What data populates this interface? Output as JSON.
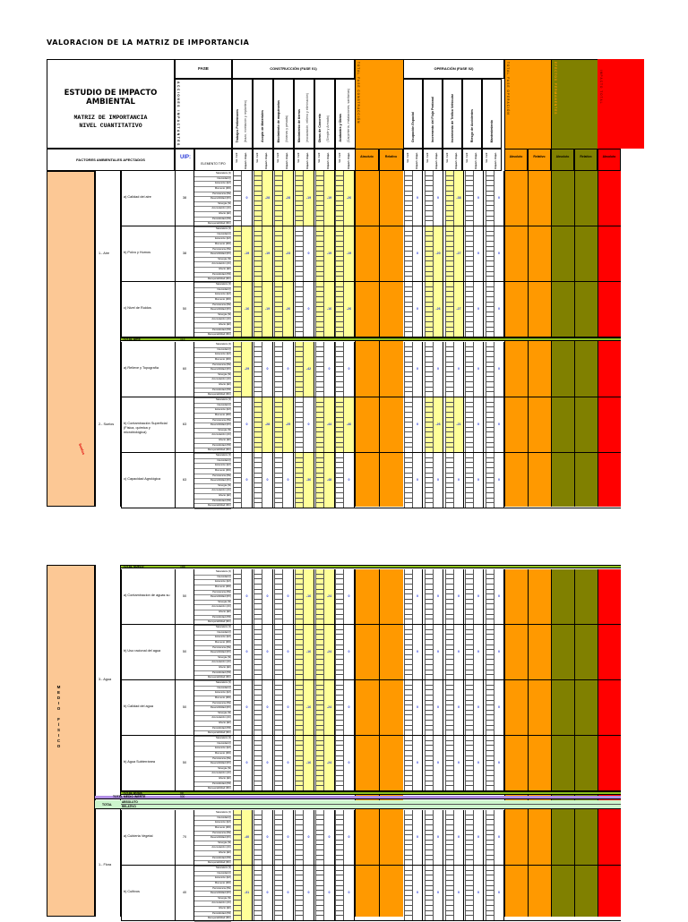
{
  "title": "VALORACION DE LA MATRIZ DE IMPORTANCIA",
  "header": {
    "study": "ESTUDIO DE IMPACTO AMBIENTAL",
    "sub1": "MATRIZ DE IMPORTANCIA",
    "sub2": "NIVEL CUANTITATIVO",
    "fase": "FASE",
    "acciones_vertical": "ACCIONES IMPACTANTES",
    "factores": "FACTORES AMBIENTALES AFECTADOS",
    "uip": "UIP:",
    "elemento_tipo": "ELEMENTO TIPO",
    "construccion": "CONSTRUCCIÓN (FASE 01)",
    "operacion": "OPERACIÓN (FASE 02)",
    "total_construccion_vertical": "TOTAL FASE CONSTRUCCIÓN",
    "total_operacion_vertical": "TOTAL FASE OPERACIÓN",
    "efectos_permanentes_vertical": "EFECTOS PERMANENTES",
    "impacto_total_vertical": "IMPACTO TOTAL",
    "absoluto": "Absoluto",
    "relativo": "Relativo",
    "val_calif": "Val. Calif.",
    "import_impc": "Import. Impc."
  },
  "construction_actions": [
    {
      "name": "Trabajos Preliminares",
      "detail": "(trazo, nivelación y replanteo)"
    },
    {
      "name": "Acopio de Materiales",
      "detail": ""
    },
    {
      "name": "Movimiento de maquinarias",
      "detail": "(livianas y pesada)"
    },
    {
      "name": "Movimiento de tierras",
      "detail": "(excavación, relleno y eliminación)"
    },
    {
      "name": "Obras de Concreto",
      "detail": "(Simple y Armado)"
    },
    {
      "name": "Acabados y Obras",
      "detail": "(Carpintería, instalaciones, sanitarias)"
    }
  ],
  "operation_actions": [
    {
      "name": "Ocupación Espacial"
    },
    {
      "name": "Incremento del Flujo Peatonal"
    },
    {
      "name": "Incremento de Tráfico Vehicular"
    },
    {
      "name": "Riesgo de Accidentes"
    },
    {
      "name": "Mantenimiento"
    }
  ],
  "criteria": [
    "Naturaleza (±)",
    "Intensidad (I)",
    "Extensión (EX)",
    "Momento (MO)",
    "Persistencia (PE)",
    "Reversibilidad (RV)",
    "Sinergia (SI)",
    "Acumulación (AC)",
    "Efecto (EF)",
    "Periodicidad (PR)",
    "Recuperabilidad (MC)"
  ],
  "medium_fisico_label": "MEDIO FÍSICO",
  "page_top": {
    "components": [
      {
        "label": "1.- Aire",
        "factors": [
          {
            "name": "a) Calidad del aire",
            "uip": "38",
            "cons": [
              "0",
              "-28",
              "-28",
              "-19",
              "-19",
              "-26"
            ],
            "cons_filled": [
              false,
              true,
              true,
              true,
              true,
              true
            ],
            "op": [
              "0",
              "0",
              "-38",
              "0",
              "0"
            ],
            "op_filled": [
              false,
              false,
              true,
              false,
              false
            ]
          },
          {
            "name": "b) Polvo y Humos",
            "uip": "38",
            "cons": [
              "-19",
              "-19",
              "-23",
              "0",
              "-19",
              "-19"
            ],
            "cons_filled": [
              true,
              true,
              true,
              false,
              true,
              true
            ],
            "op": [
              "0",
              "-20",
              "-27",
              "0",
              "0"
            ],
            "op_filled": [
              false,
              true,
              true,
              false,
              false
            ]
          },
          {
            "name": "c) Nivel de Ruidos",
            "uip": "50",
            "cons": [
              "-16",
              "-19",
              "-26",
              "0",
              "-16",
              "-26"
            ],
            "cons_filled": [
              true,
              true,
              true,
              false,
              true,
              true
            ],
            "op": [
              "0",
              "-26",
              "-27",
              "0",
              "0"
            ],
            "op_filled": [
              false,
              true,
              true,
              false,
              false
            ]
          }
        ],
        "total": {
          "label": "TOTAL AIRE",
          "value": "113"
        }
      },
      {
        "label": "2.- Suelos",
        "factors": [
          {
            "name": "a) Relieve y Topografía",
            "uip": "60",
            "cons": [
              "-29",
              "0",
              "0",
              "-42",
              "0",
              "0"
            ],
            "cons_filled": [
              true,
              false,
              false,
              true,
              false,
              false
            ],
            "op": [
              "0",
              "0",
              "0",
              "0",
              "0"
            ],
            "op_filled": [
              false,
              false,
              false,
              false,
              false
            ]
          },
          {
            "name": "b) Contaminación Superficial (Física, química y microbiológica)",
            "uip": "63",
            "cons": [
              "0",
              "-28",
              "-25",
              "0",
              "-44",
              "-46"
            ],
            "cons_filled": [
              false,
              true,
              true,
              false,
              true,
              true
            ],
            "op": [
              "0",
              "-26",
              "-21",
              "0",
              "0"
            ],
            "op_filled": [
              false,
              true,
              true,
              false,
              false
            ]
          },
          {
            "name": "c) Capacidad Agrológica",
            "uip": "63",
            "cons": [
              "0",
              "0",
              "0",
              "-36",
              "-48",
              "0"
            ],
            "cons_filled": [
              false,
              false,
              false,
              true,
              true,
              false
            ],
            "op": [
              "0",
              "0",
              "0",
              "0",
              "0"
            ],
            "op_filled": [
              false,
              false,
              false,
              false,
              false
            ]
          }
        ]
      }
    ]
  },
  "page_bottom": {
    "total_suelo": {
      "label": "TOTAL SUELO",
      "value": "186"
    },
    "components": [
      {
        "label": "3.- Agua",
        "factors": [
          {
            "name": "a) Contaminacion de aguas su",
            "uip": "50",
            "cons": [
              "0",
              "0",
              "0",
              "-16",
              "-24",
              "0"
            ],
            "cons_filled": [
              false,
              false,
              false,
              true,
              true,
              false
            ],
            "op": [
              "0",
              "0",
              "0",
              "0",
              "0"
            ],
            "op_filled": [
              false,
              false,
              false,
              false,
              false
            ]
          },
          {
            "name": "b) Uso racional del agua",
            "uip": "50",
            "cons": [
              "0",
              "0",
              "0",
              "-16",
              "-24",
              "0"
            ],
            "cons_filled": [
              false,
              false,
              false,
              true,
              true,
              false
            ],
            "op": [
              "0",
              "0",
              "0",
              "0",
              "0"
            ],
            "op_filled": [
              false,
              false,
              false,
              false,
              false
            ]
          },
          {
            "name": "b) Calidad del agua",
            "uip": "50",
            "cons": [
              "0",
              "0",
              "0",
              "-16",
              "-24",
              "0"
            ],
            "cons_filled": [
              false,
              false,
              false,
              true,
              true,
              false
            ],
            "op": [
              "0",
              "0",
              "0",
              "0",
              "0"
            ],
            "op_filled": [
              false,
              false,
              false,
              false,
              false
            ]
          },
          {
            "name": "b) Agua Subterránea",
            "uip": "50",
            "cons": [
              "0",
              "0",
              "0",
              "-16",
              "-24",
              "0"
            ],
            "cons_filled": [
              false,
              false,
              false,
              true,
              true,
              false
            ],
            "op": [
              "0",
              "0",
              "0",
              "0",
              "0"
            ],
            "op_filled": [
              false,
              false,
              false,
              false,
              false
            ]
          }
        ],
        "total": {
          "label": "TOTAL AGUA",
          "value": "58"
        }
      }
    ],
    "total_medio": {
      "label": "TOTAL MEDIO INERTE",
      "value": "500"
    },
    "total_label": "TOTAL",
    "absoluto_label": "ABSOLUTO",
    "relativo_label": "RELATIVO",
    "flora": {
      "label": "1.- Flora",
      "factors": [
        {
          "name": "a) Cubierta Vegetal",
          "uip": "70",
          "cons": [
            "-40",
            "0",
            "0",
            "0",
            "0",
            "0"
          ],
          "cons_filled": [
            true,
            false,
            false,
            false,
            false,
            false
          ]
        },
        {
          "name": "b) Cultivos",
          "uip": "40",
          "cons": [
            "-31",
            "0",
            "0",
            "0",
            "0",
            "0"
          ],
          "cons_filled": [
            true,
            false,
            false,
            false,
            false,
            false
          ]
        }
      ]
    }
  },
  "side_note_red": "Suelos"
}
